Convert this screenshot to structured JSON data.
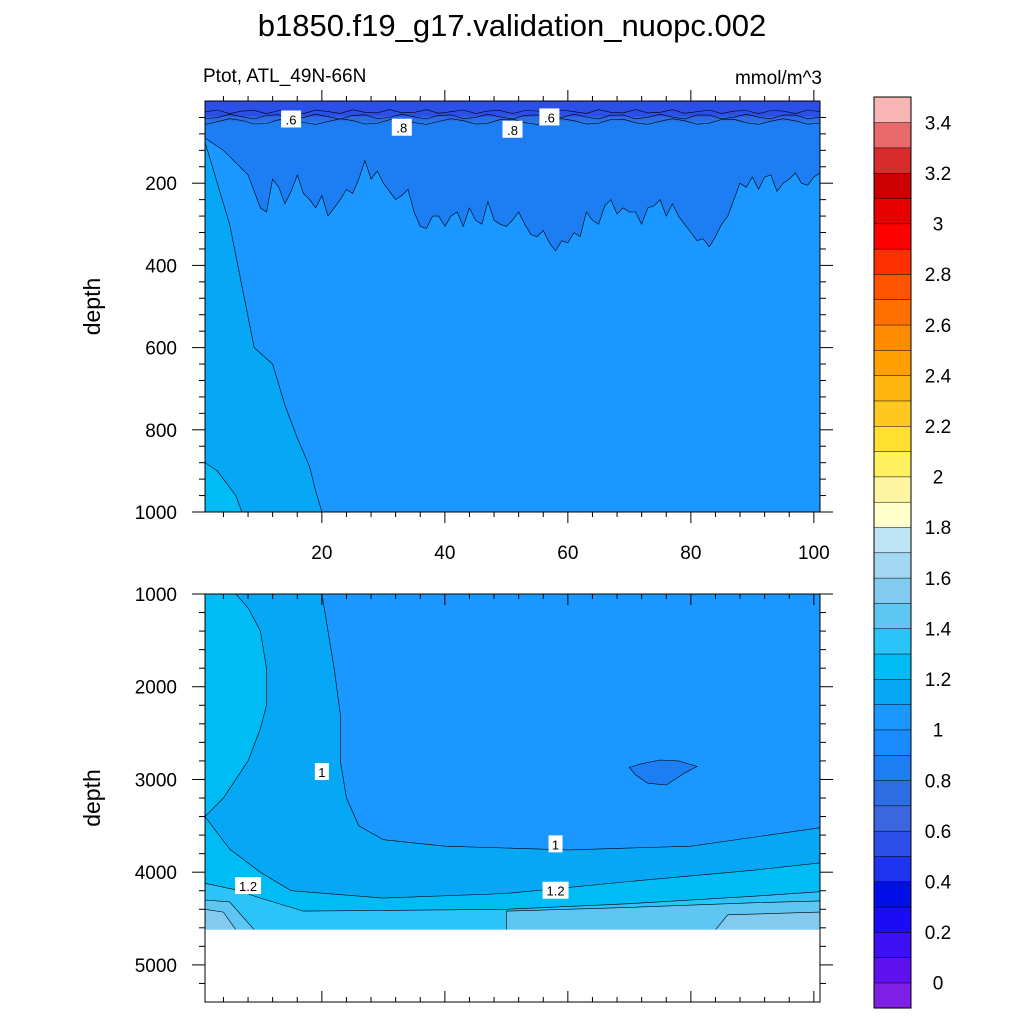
{
  "figure": {
    "title": "b1850.f19_g17.validation_nuopc.002",
    "left_subtitle": "Ptot, ATL_49N-66N",
    "right_subtitle": "mmol/m^3"
  },
  "colorbar": {
    "colors": [
      "#7f1fe6",
      "#5f10ef",
      "#3c10f2",
      "#1a0cf6",
      "#0010e6",
      "#1e34ee",
      "#2c4fe8",
      "#3a66e0",
      "#2c6de4",
      "#1c7ef2",
      "#1a8cff",
      "#1a98ff",
      "#06a8f5",
      "#00bcf5",
      "#2bc3f8",
      "#5ec6f2",
      "#82cbee",
      "#a3d8f2",
      "#bfe4f5",
      "#ffffcc",
      "#fff5a0",
      "#fff060",
      "#ffe030",
      "#ffc820",
      "#ffb510",
      "#ffa000",
      "#ff8c00",
      "#ff7000",
      "#ff5500",
      "#ff3000",
      "#ff0000",
      "#e80000",
      "#cc0000",
      "#d92b2b",
      "#e86a6a",
      "#f9b4b4"
    ],
    "labels": [
      "0",
      "0.2",
      "0.4",
      "0.6",
      "0.8",
      "1",
      "1.2",
      "1.4",
      "1.6",
      "1.8",
      "2",
      "2.2",
      "2.4",
      "2.6",
      "2.8",
      "3",
      "3.2",
      "3.4"
    ]
  },
  "chart_data": [
    {
      "type": "contour",
      "panel": "upper",
      "ylabel": "depth",
      "xlim": [
        1,
        101
      ],
      "ylim": [
        0,
        1000
      ],
      "y_inverted": true,
      "xticks": [
        20,
        40,
        60,
        80,
        100
      ],
      "yticks": [
        200,
        400,
        600,
        800,
        1000
      ],
      "contour_labels": [
        {
          "text": ".6",
          "x": 15,
          "y": 45
        },
        {
          "text": ".8",
          "x": 33,
          "y": 65
        },
        {
          "text": ".8",
          "x": 51,
          "y": 70
        },
        {
          "text": ".6",
          "x": 57,
          "y": 40
        }
      ],
      "levels": [
        {
          "min": 0.6,
          "max": 0.7,
          "color": "#2c4fe8",
          "top": [
            [
              1,
              0
            ],
            [
              101,
              0
            ]
          ],
          "bottom": [
            [
              1,
              38
            ],
            [
              101,
              38
            ]
          ]
        },
        {
          "min": 0.7,
          "max": 0.8,
          "color": "#2c6de4",
          "top": [
            [
              1,
              38
            ],
            [
              101,
              38
            ]
          ],
          "bottom": [
            [
              1,
              50
            ],
            [
              101,
              50
            ]
          ]
        },
        {
          "min": 0.8,
          "max": 0.9,
          "color": "#1c7ef2",
          "top": [
            [
              1,
              50
            ],
            [
              101,
              50
            ]
          ],
          "bottom": [
            [
              1,
              90
            ],
            [
              4,
              120
            ],
            [
              8,
              180
            ],
            [
              10,
              260
            ],
            [
              11,
              270
            ],
            [
              12,
              190
            ],
            [
              13,
              210
            ],
            [
              14,
              250
            ],
            [
              15,
              220
            ],
            [
              16,
              180
            ],
            [
              17,
              225
            ],
            [
              18,
              240
            ],
            [
              19,
              260
            ],
            [
              20,
              230
            ],
            [
              21,
              280
            ],
            [
              22,
              260
            ],
            [
              23,
              240
            ],
            [
              24,
              215
            ],
            [
              25,
              225
            ],
            [
              26,
              190
            ],
            [
              27,
              145
            ],
            [
              28,
              190
            ],
            [
              29,
              170
            ],
            [
              30,
              200
            ],
            [
              31,
              220
            ],
            [
              32,
              240
            ],
            [
              33,
              230
            ],
            [
              34,
              215
            ],
            [
              35,
              270
            ],
            [
              36,
              305
            ],
            [
              37,
              310
            ],
            [
              38,
              280
            ],
            [
              39,
              280
            ],
            [
              40,
              305
            ],
            [
              41,
              280
            ],
            [
              42,
              270
            ],
            [
              43,
              305
            ],
            [
              44,
              260
            ],
            [
              45,
              290
            ],
            [
              46,
              300
            ],
            [
              47,
              245
            ],
            [
              48,
              290
            ],
            [
              49,
              300
            ],
            [
              50,
              305
            ],
            [
              51,
              290
            ],
            [
              52,
              270
            ],
            [
              53,
              300
            ],
            [
              54,
              325
            ],
            [
              55,
              330
            ],
            [
              56,
              315
            ],
            [
              57,
              345
            ],
            [
              58,
              365
            ],
            [
              59,
              340
            ],
            [
              60,
              345
            ],
            [
              61,
              320
            ],
            [
              62,
              330
            ],
            [
              63,
              270
            ],
            [
              64,
              290
            ],
            [
              65,
              300
            ],
            [
              66,
              255
            ],
            [
              67,
              240
            ],
            [
              68,
              275
            ],
            [
              69,
              260
            ],
            [
              70,
              270
            ],
            [
              71,
              270
            ],
            [
              72,
              300
            ],
            [
              73,
              260
            ],
            [
              74,
              255
            ],
            [
              75,
              240
            ],
            [
              76,
              280
            ],
            [
              77,
              250
            ],
            [
              78,
              280
            ],
            [
              79,
              300
            ],
            [
              80,
              320
            ],
            [
              81,
              340
            ],
            [
              82,
              335
            ],
            [
              83,
              355
            ],
            [
              84,
              330
            ],
            [
              85,
              300
            ],
            [
              86,
              280
            ],
            [
              87,
              240
            ],
            [
              88,
              200
            ],
            [
              89,
              210
            ],
            [
              90,
              185
            ],
            [
              91,
              215
            ],
            [
              92,
              185
            ],
            [
              93,
              180
            ],
            [
              94,
              220
            ],
            [
              95,
              200
            ],
            [
              96,
              190
            ],
            [
              97,
              175
            ],
            [
              98,
              200
            ],
            [
              99,
              205
            ],
            [
              100,
              185
            ],
            [
              101,
              175
            ]
          ]
        },
        {
          "min": 0.9,
          "max": 1.0,
          "color": "#1a98ff",
          "top": [],
          "bottom": [
            [
              1,
              100
            ],
            [
              5,
              300
            ],
            [
              9,
              600
            ],
            [
              12,
              640
            ],
            [
              14,
              740
            ],
            [
              16,
              820
            ],
            [
              18,
              890
            ],
            [
              19,
              950
            ],
            [
              20,
              1000
            ],
            [
              101,
              1000
            ]
          ]
        },
        {
          "min": 1.0,
          "max": 1.1,
          "color": "#06a8f5",
          "top": [],
          "bottom": [
            [
              1,
              880
            ],
            [
              3,
              900
            ],
            [
              6,
              960
            ],
            [
              7,
              1000
            ],
            [
              1,
              1000
            ]
          ]
        }
      ]
    },
    {
      "type": "contour",
      "panel": "lower",
      "ylabel": "depth",
      "xlim": [
        1,
        101
      ],
      "ylim": [
        1000,
        5400
      ],
      "y_inverted": true,
      "yticks": [
        1000,
        2000,
        3000,
        4000,
        5000
      ],
      "missing_below": 4620,
      "contour_labels": [
        {
          "text": "1",
          "x": 20,
          "y": 2920
        },
        {
          "text": "1",
          "x": 58,
          "y": 3700
        },
        {
          "text": "1.2",
          "x": 8,
          "y": 4150
        },
        {
          "text": "1.2",
          "x": 58,
          "y": 4200
        }
      ],
      "levels": [
        {
          "min": 0.8,
          "max": 0.9,
          "color": "#1c7ef2",
          "region": "blob",
          "outline": [
            [
              70,
              2870
            ],
            [
              72,
              2830
            ],
            [
              75,
              2790
            ],
            [
              78,
              2800
            ],
            [
              81,
              2860
            ],
            [
              79,
              2930
            ],
            [
              76,
              3060
            ],
            [
              73,
              3040
            ],
            [
              71,
              2950
            ]
          ]
        },
        {
          "min": 1.0,
          "max": 1.1,
          "color": "#06a8f5",
          "boundary": [
            [
              6,
              1000
            ],
            [
              8,
              1150
            ],
            [
              10,
              1400
            ],
            [
              11,
              1800
            ],
            [
              11,
              2200
            ],
            [
              10,
              2450
            ],
            [
              8,
              2800
            ],
            [
              4,
              3200
            ],
            [
              1,
              3400
            ]
          ],
          "boundary2": [
            [
              20,
              1000
            ],
            [
              21,
              1400
            ],
            [
              22,
              1800
            ],
            [
              23,
              2300
            ],
            [
              23,
              2800
            ],
            [
              24,
              3200
            ],
            [
              26,
              3500
            ],
            [
              30,
              3650
            ],
            [
              40,
              3720
            ],
            [
              60,
              3760
            ],
            [
              80,
              3720
            ],
            [
              101,
              3520
            ]
          ]
        },
        {
          "min": 1.1,
          "max": 1.2,
          "color": "#00bcf5",
          "boundary": [
            [
              1,
              3400
            ],
            [
              5,
              3750
            ],
            [
              10,
              4000
            ],
            [
              15,
              4200
            ],
            [
              30,
              4280
            ],
            [
              50,
              4230
            ],
            [
              70,
              4100
            ],
            [
              90,
              3980
            ],
            [
              101,
              3900
            ]
          ]
        },
        {
          "min": 1.2,
          "max": 1.3,
          "color": "#2bc3f8",
          "boundary": [
            [
              1,
              4120
            ],
            [
              6,
              4190
            ],
            [
              10,
              4280
            ],
            [
              17,
              4420
            ],
            [
              50,
              4400
            ],
            [
              70,
              4340
            ],
            [
              90,
              4260
            ],
            [
              101,
              4210
            ]
          ]
        },
        {
          "min": 1.3,
          "max": 1.4,
          "color": "#5ec6f2",
          "boundary": [
            [
              1,
              4300
            ],
            [
              5,
              4320
            ],
            [
              9,
              4620
            ]
          ],
          "boundary2": [
            [
              50,
              4620
            ],
            [
              50,
              4420
            ],
            [
              70,
              4380
            ],
            [
              90,
              4330
            ],
            [
              101,
              4310
            ]
          ]
        },
        {
          "min": 1.4,
          "max": 1.5,
          "color": "#82cbee",
          "boundary": [
            [
              1,
              4400
            ],
            [
              4,
              4430
            ],
            [
              6,
              4620
            ]
          ],
          "boundary2": [
            [
              84,
              4620
            ],
            [
              86,
              4460
            ],
            [
              101,
              4430
            ]
          ]
        }
      ]
    }
  ]
}
